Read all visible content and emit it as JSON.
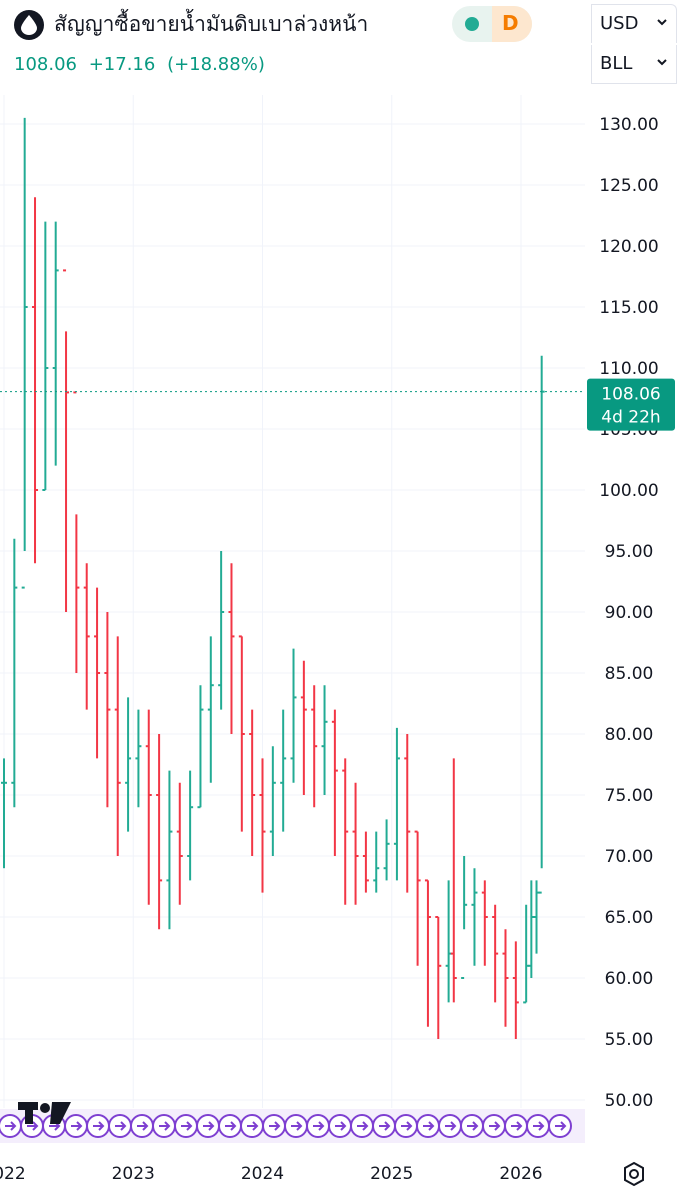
{
  "header": {
    "title": "สัญญาซื้อขายน้ำมันดิบเบาล่วงหน้า",
    "last": "108.06",
    "change": "+17.16",
    "change_pct": "(+18.88%)",
    "interval": "D",
    "currency": "USD",
    "unit": "BLL"
  },
  "colors": {
    "up": "#22ab94",
    "down": "#f23645",
    "accent": "#089981",
    "events": "#7e3fd1"
  },
  "chart_data": {
    "type": "ohlc",
    "interval": "week",
    "ylim": [
      47.5,
      132.5
    ],
    "yticks": [
      "130.00",
      "125.00",
      "120.00",
      "115.00",
      "110.00",
      "105.00",
      "100.00",
      "95.00",
      "90.00",
      "85.00",
      "80.00",
      "75.00",
      "70.00",
      "65.00",
      "60.00",
      "55.00",
      "50.00"
    ],
    "xticks": [
      "2022",
      "2023",
      "2024",
      "2025",
      "2026"
    ],
    "xrange": [
      2022.0,
      2026.48
    ],
    "price_label": {
      "value": "108.06",
      "countdown": "4d 22h"
    },
    "series": [
      {
        "x": [
          2022.0,
          2022.08,
          2022.16,
          2022.24,
          2022.32,
          2022.4,
          2022.48,
          2022.56,
          2022.64,
          2022.72,
          2022.8,
          2022.88,
          2022.96,
          2023.04,
          2023.12,
          2023.2,
          2023.28,
          2023.36,
          2023.44,
          2023.52,
          2023.6,
          2023.68,
          2023.76,
          2023.84,
          2023.92,
          2024.0,
          2024.08,
          2024.16,
          2024.24,
          2024.32,
          2024.4,
          2024.48,
          2024.56,
          2024.64,
          2024.72,
          2024.8,
          2024.88,
          2024.96,
          2025.04,
          2025.12,
          2025.2,
          2025.28,
          2025.36,
          2025.44,
          2025.48,
          2025.56,
          2025.64,
          2025.72,
          2025.8,
          2025.88,
          2025.96,
          2026.04,
          2026.08,
          2026.12,
          2026.16
        ],
        "close": [
          76.0,
          92.0,
          115.0,
          100.0,
          110.0,
          118.0,
          108.0,
          92.0,
          88.0,
          85.0,
          82.0,
          76.0,
          78.0,
          79.0,
          75.0,
          68.0,
          72.0,
          70.0,
          74.0,
          82.0,
          84.0,
          90.0,
          88.0,
          80.0,
          75.0,
          72.0,
          76.0,
          78.0,
          83.0,
          82.0,
          79.0,
          81.0,
          77.0,
          72.0,
          70.0,
          68.0,
          69.0,
          71.0,
          78.0,
          72.0,
          68.0,
          65.0,
          61.0,
          62.0,
          60.0,
          66.0,
          67.0,
          65.0,
          62.0,
          60.0,
          58.0,
          61.0,
          65.0,
          67.0,
          108.06
        ],
        "high": [
          78.0,
          96.0,
          130.5,
          124.0,
          122.0,
          122.0,
          113.0,
          98.0,
          94.0,
          92.0,
          90.0,
          88.0,
          83.0,
          82.0,
          82.0,
          80.0,
          77.0,
          76.0,
          77.0,
          84.0,
          88.0,
          95.0,
          94.0,
          88.0,
          82.0,
          78.0,
          79.0,
          82.0,
          87.0,
          86.0,
          84.0,
          84.0,
          82.0,
          78.0,
          76.0,
          72.0,
          72.0,
          73.0,
          80.5,
          80.0,
          72.0,
          68.0,
          65.0,
          68.0,
          78.0,
          70.0,
          69.0,
          68.0,
          66.0,
          64.0,
          63.0,
          66.0,
          68.0,
          68.0,
          111.0
        ],
        "low": [
          69.0,
          74.0,
          95.0,
          94.0,
          100.0,
          102.0,
          90.0,
          85.0,
          82.0,
          78.0,
          74.0,
          70.0,
          72.0,
          74.0,
          66.0,
          64.0,
          64.0,
          66.0,
          68.0,
          74.0,
          76.0,
          82.0,
          80.0,
          72.0,
          70.0,
          67.0,
          70.0,
          72.0,
          76.0,
          75.0,
          74.0,
          75.0,
          70.0,
          66.0,
          66.0,
          67.0,
          67.0,
          68.0,
          68.0,
          67.0,
          61.0,
          56.0,
          55.0,
          58.0,
          58.0,
          64.0,
          61.0,
          61.0,
          58.0,
          56.0,
          55.0,
          58.0,
          60.0,
          62.0,
          69.0
        ]
      }
    ]
  }
}
